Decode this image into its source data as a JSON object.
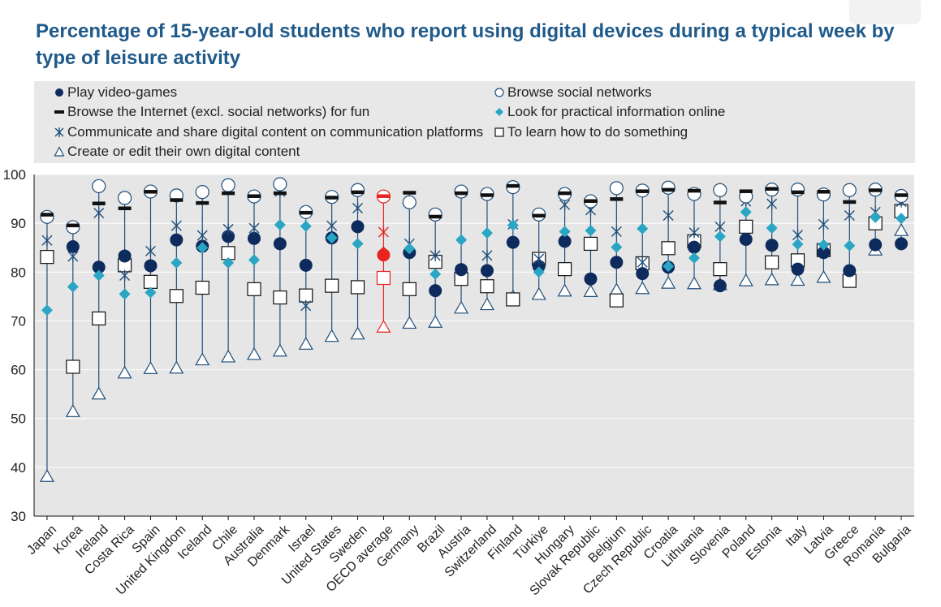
{
  "page": {
    "title": "Percentage of 15-year-old students who report using digital devices during a typical week by type of leisure activity"
  },
  "colors": {
    "navy": "#0d2b5c",
    "teal": "#2aa6c4",
    "connector": "#1f4e79",
    "plot_bg": "#e6e6e6",
    "highlight": "#e8251f",
    "title": "#1f5a8a"
  },
  "chart_data": {
    "type": "scatter",
    "ylim": [
      30,
      100
    ],
    "y_ticks": [
      "100",
      "90",
      "80",
      "70",
      "60",
      "50",
      "40",
      "30"
    ],
    "grid": "horizontal",
    "legend_position": "top",
    "highlight_category": "OECD average",
    "categories": [
      "Japan",
      "Korea",
      "Ireland",
      "Costa Rica",
      "Spain",
      "United Kingdom",
      "Iceland",
      "Chile",
      "Australia",
      "Denmark",
      "Israel",
      "United States",
      "Sweden",
      "OECD average",
      "Germany",
      "Brazil",
      "Austria",
      "Switzerland",
      "Finland",
      "Türkiye",
      "Hungary",
      "Slovak Republic",
      "Belgium",
      "Czech Republic",
      "Croatia",
      "Lithuania",
      "Slovenia",
      "Poland",
      "Estonia",
      "Italy",
      "Latvia",
      "Greece",
      "Romania",
      "Bulgaria"
    ],
    "series": [
      {
        "name": "Play video-games",
        "marker": "filled-circle",
        "values": [
          null,
          85.2,
          81.0,
          83.3,
          81.3,
          86.6,
          85.3,
          87.3,
          86.9,
          85.8,
          81.4,
          87.0,
          89.3,
          83.5,
          84.0,
          76.2,
          80.5,
          80.3,
          86.1,
          81.2,
          86.3,
          78.6,
          82.0,
          79.7,
          81.0,
          85.1,
          77.2,
          86.7,
          85.5,
          80.6,
          84.0,
          80.3,
          85.6,
          85.8
        ]
      },
      {
        "name": "Browse social networks",
        "marker": "open-circle",
        "values": [
          91.3,
          89.2,
          97.6,
          95.2,
          96.5,
          95.7,
          96.4,
          97.8,
          95.5,
          98.0,
          92.3,
          95.4,
          96.8,
          95.5,
          94.3,
          91.8,
          96.5,
          96.0,
          97.4,
          91.8,
          96.0,
          94.5,
          97.2,
          96.7,
          97.3,
          96.0,
          96.8,
          95.5,
          96.9,
          96.9,
          95.9,
          96.8,
          96.9,
          95.6
        ]
      },
      {
        "name": "Browse the Internet (excl. social networks) for fun",
        "marker": "dash",
        "values": [
          91.8,
          89.6,
          94.1,
          93.1,
          96.5,
          94.8,
          94.2,
          96.2,
          95.6,
          96.2,
          92.2,
          95.3,
          96.4,
          95.6,
          96.3,
          91.4,
          96.2,
          95.8,
          97.7,
          91.6,
          96.2,
          94.6,
          95.0,
          96.6,
          96.9,
          96.7,
          94.3,
          96.6,
          97.1,
          96.4,
          96.5,
          94.4,
          96.8,
          95.8
        ]
      },
      {
        "name": "Look for practical information online",
        "marker": "teal-diamond",
        "values": [
          72.2,
          77.0,
          79.3,
          75.5,
          75.8,
          81.9,
          85.0,
          81.9,
          82.5,
          89.7,
          89.4,
          87.0,
          85.8,
          84.1,
          84.8,
          79.6,
          86.6,
          88.0,
          89.6,
          80.0,
          88.3,
          88.5,
          85.1,
          88.9,
          81.2,
          82.9,
          87.3,
          92.3,
          89.0,
          85.7,
          85.6,
          85.4,
          91.2,
          91.0
        ]
      },
      {
        "name": "Communicate and share digital content on communication platforms",
        "marker": "asterisk",
        "values": [
          86.5,
          83.2,
          92.1,
          79.3,
          84.3,
          89.5,
          87.5,
          88.8,
          89.0,
          96.5,
          73.1,
          89.5,
          93.1,
          88.2,
          85.8,
          83.4,
          96.4,
          83.4,
          89.8,
          82.7,
          93.8,
          92.7,
          88.3,
          82.0,
          91.6,
          88.1,
          89.3,
          94.5,
          94.0,
          87.6,
          89.8,
          91.6,
          92.3,
          94.4
        ]
      },
      {
        "name": "To learn how to do something",
        "marker": "open-square",
        "values": [
          83.1,
          60.6,
          70.5,
          81.4,
          78.0,
          75.1,
          76.8,
          83.9,
          76.5,
          74.8,
          75.2,
          77.2,
          76.9,
          78.8,
          76.5,
          82.1,
          78.6,
          77.1,
          74.4,
          82.7,
          80.6,
          85.8,
          74.2,
          81.8,
          84.9,
          86.3,
          80.6,
          89.3,
          82.0,
          82.4,
          84.5,
          78.2,
          90.0,
          92.5
        ]
      },
      {
        "name": "Create or edit their own digital content",
        "marker": "open-triangle",
        "values": [
          38.1,
          51.4,
          55.0,
          59.3,
          60.2,
          60.3,
          62.0,
          62.6,
          63.1,
          63.8,
          65.2,
          66.8,
          67.3,
          68.7,
          69.5,
          69.7,
          72.6,
          73.3,
          74.9,
          75.4,
          76.1,
          76.0,
          76.3,
          76.6,
          77.7,
          77.6,
          77.4,
          78.2,
          78.4,
          78.3,
          78.9,
          79.7,
          84.5,
          88.5
        ]
      }
    ]
  }
}
